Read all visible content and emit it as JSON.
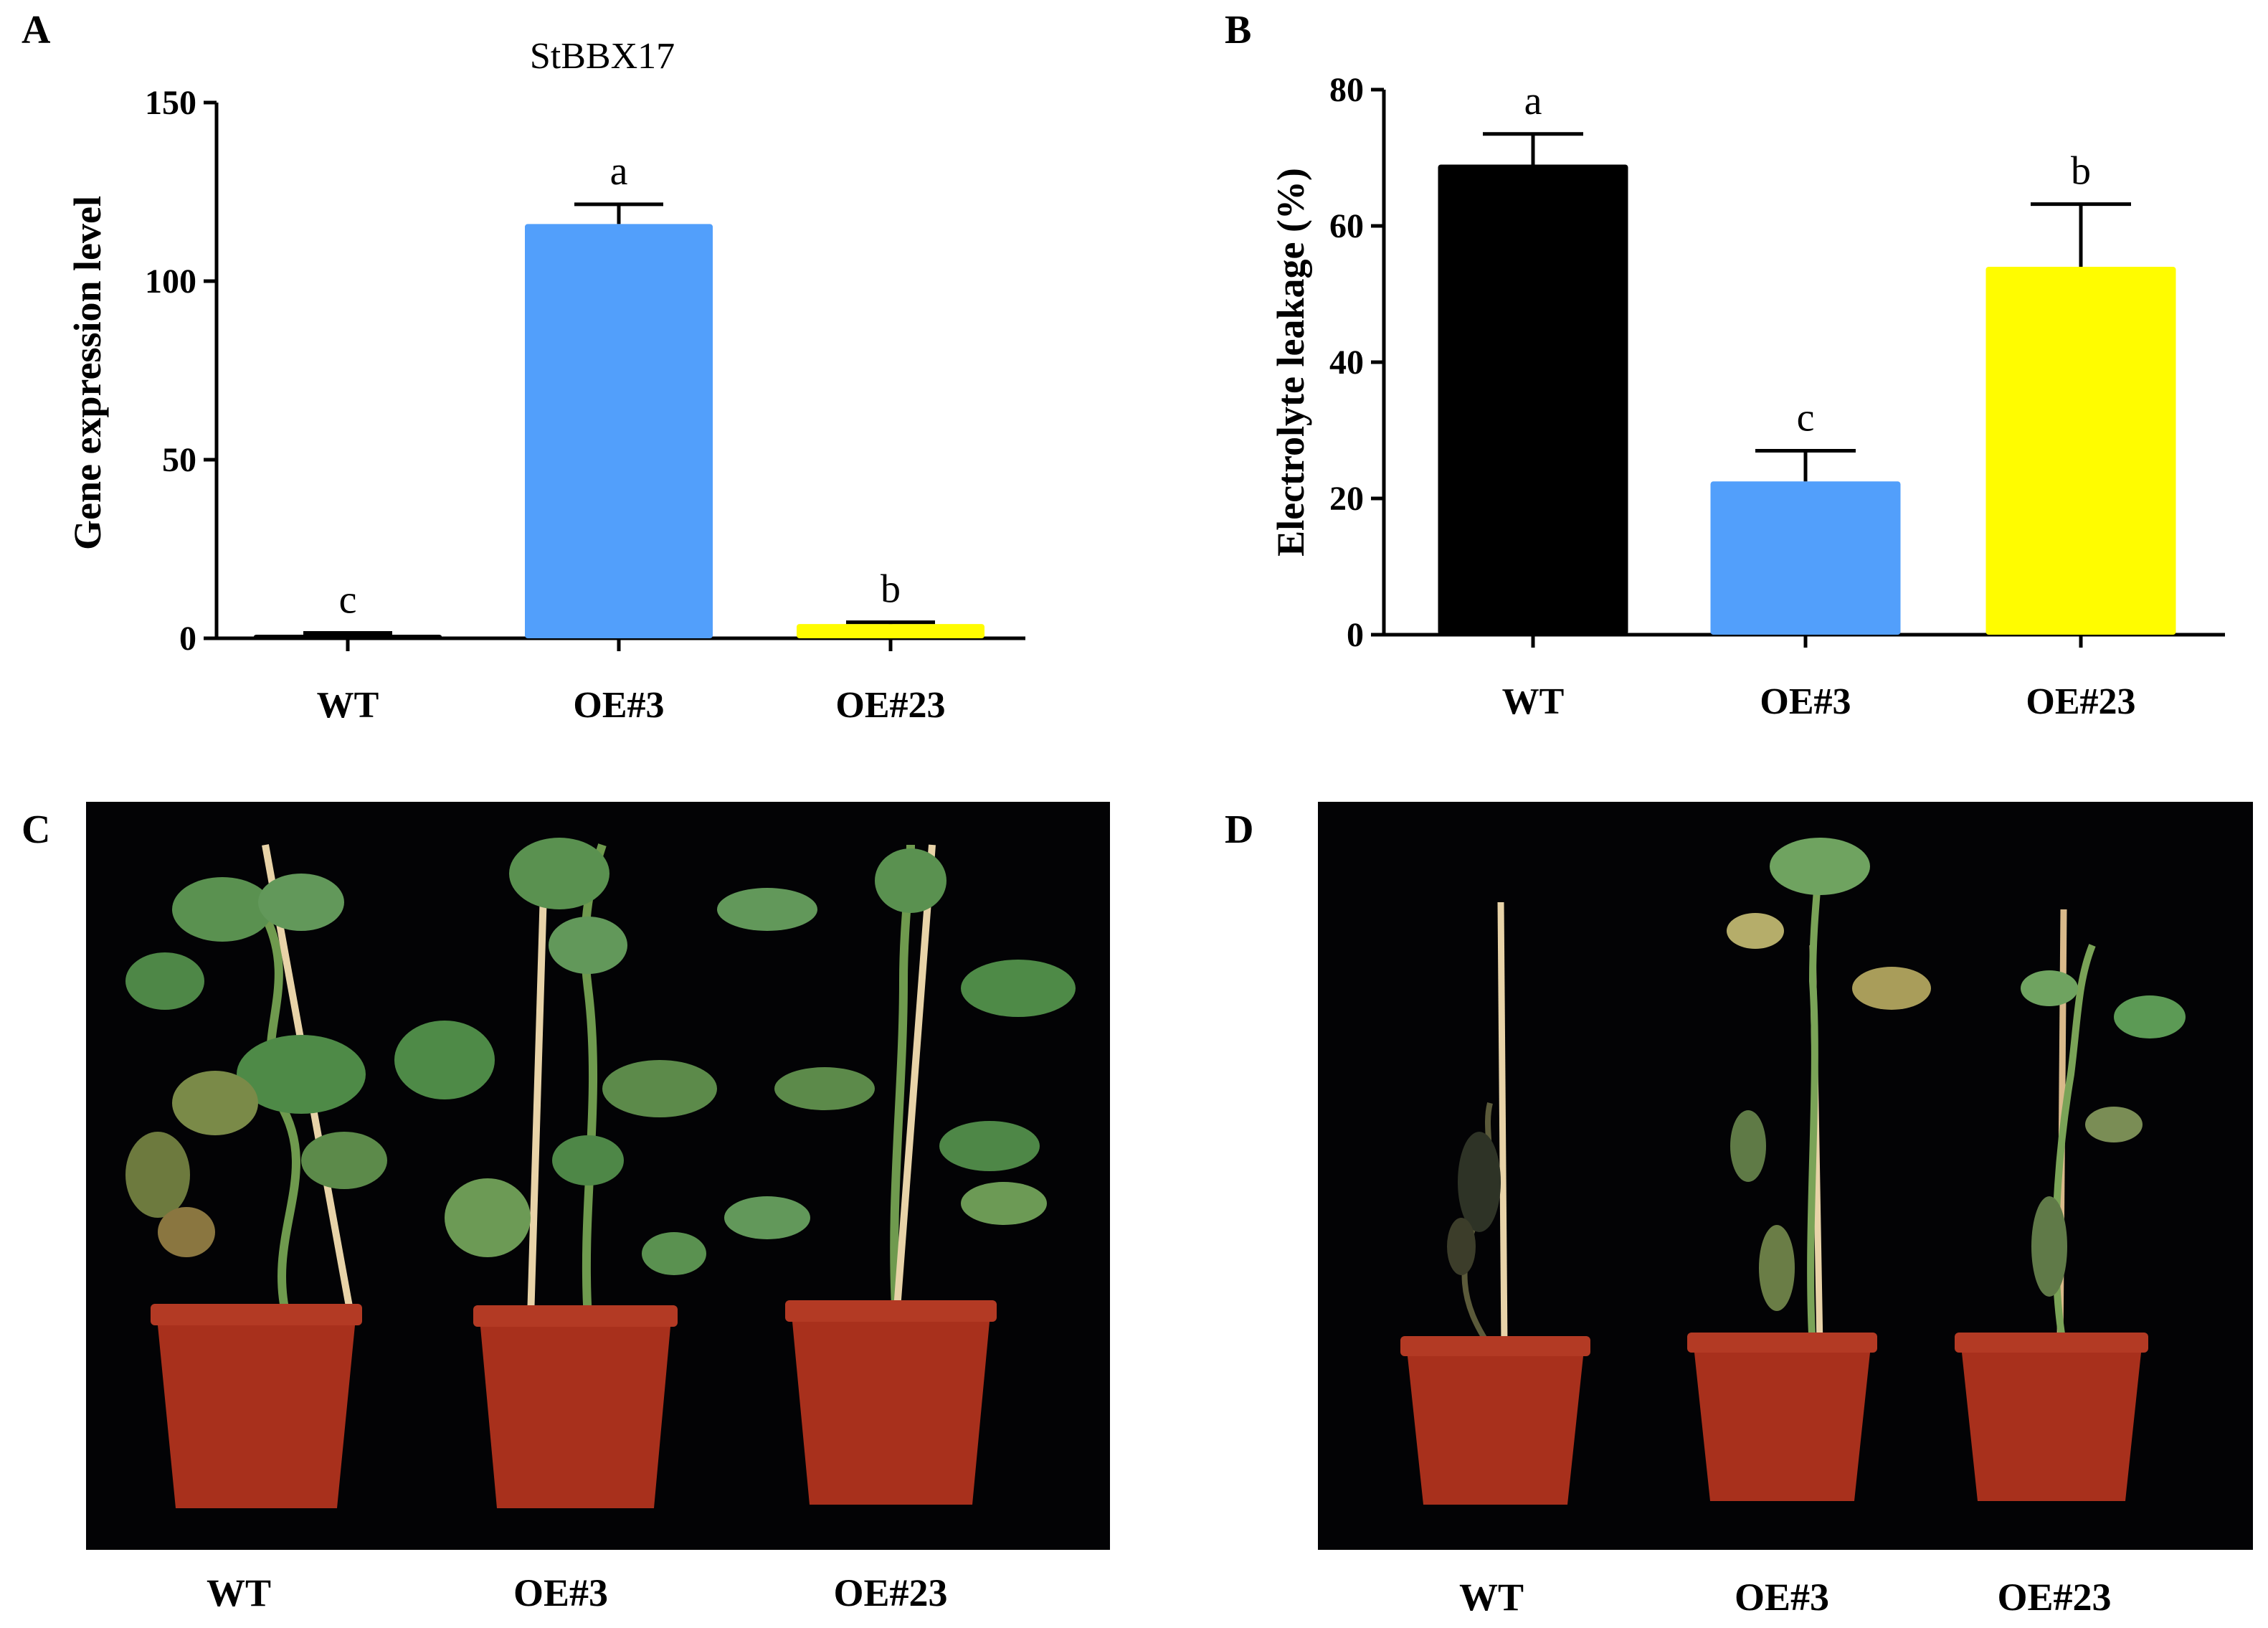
{
  "panels": {
    "a": {
      "letter": "A"
    },
    "b": {
      "letter": "B"
    },
    "c": {
      "letter": "C",
      "captions": [
        "WT",
        "OE#3",
        "OE#23"
      ]
    },
    "d": {
      "letter": "D",
      "captions": [
        "WT",
        "OE#3",
        "OE#23"
      ]
    }
  },
  "chart_data": [
    {
      "type": "bar",
      "title": "StBBX17",
      "ylabel": "Gene expression level",
      "xlabel": "",
      "categories": [
        "WT",
        "OE#3",
        "OE#23"
      ],
      "values": [
        1,
        116,
        4
      ],
      "errors": [
        0.5,
        5.5,
        0.5
      ],
      "significance": [
        "c",
        "a",
        "b"
      ],
      "colors": [
        "#000000",
        "#529ffb",
        "#fffc00"
      ],
      "ylim": [
        0,
        150
      ],
      "yticks": [
        0,
        50,
        100,
        150
      ],
      "grid": false
    },
    {
      "type": "bar",
      "title": "",
      "ylabel": "Electrolyte leakage (%)",
      "xlabel": "",
      "categories": [
        "WT",
        "OE#3",
        "OE#23"
      ],
      "values": [
        69,
        22.5,
        54
      ],
      "errors": [
        4.5,
        4.5,
        9.2
      ],
      "significance": [
        "a",
        "c",
        "b"
      ],
      "colors": [
        "#000000",
        "#529ffb",
        "#fffc00"
      ],
      "ylim": [
        0,
        80
      ],
      "yticks": [
        0,
        20,
        40,
        60,
        80
      ],
      "grid": false
    }
  ],
  "colors": {
    "pot": "#a8301c",
    "leaf": "#4e8a47",
    "stake": "#e8d3a8",
    "background": "#030305"
  }
}
